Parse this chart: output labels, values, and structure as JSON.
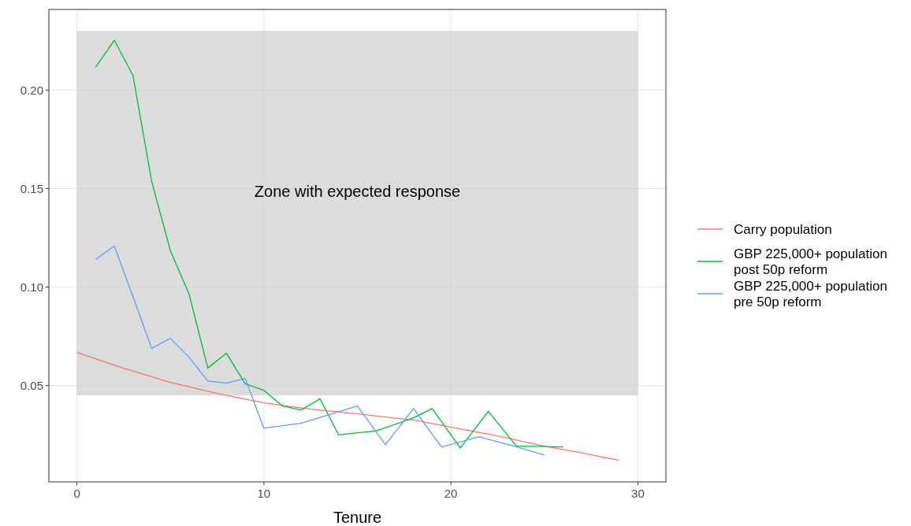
{
  "chart_data": {
    "type": "line",
    "xlabel": "Tenure",
    "xlim": [
      -1.5,
      31.5
    ],
    "ylim": [
      0.0011,
      0.2409
    ],
    "xticks": [
      0,
      10,
      20,
      30
    ],
    "yticks": [
      {
        "value": 0.05,
        "label": "0.05"
      },
      {
        "value": 0.1,
        "label": "0.10"
      },
      {
        "value": 0.15,
        "label": "0.15"
      },
      {
        "value": 0.2,
        "label": "0.20"
      }
    ],
    "grid": true,
    "legend": "right",
    "line_style": "solid",
    "marker": "none",
    "bands": [
      {
        "axis": "y",
        "from": 0.045,
        "to": 0.23,
        "color": "#dcdcdc",
        "label": "Zone with expected response"
      }
    ],
    "series": [
      {
        "name": "Carry population",
        "color": "#f8766d",
        "x": [
          0,
          2.5,
          5,
          7.5,
          10,
          12.5,
          15,
          18,
          20,
          22.5,
          25,
          27,
          29
        ],
        "values": [
          0.0668,
          0.0588,
          0.0516,
          0.046,
          0.0412,
          0.038,
          0.0356,
          0.0325,
          0.0289,
          0.0244,
          0.0192,
          0.0158,
          0.012
        ]
      },
      {
        "name": "GBP 225,000+ population\npost 50p reform",
        "color": "#00ba38",
        "x": [
          1,
          2,
          3,
          4,
          5,
          6,
          7,
          8,
          9,
          10,
          11,
          12,
          13,
          14,
          15,
          16,
          18,
          19,
          20.5,
          22,
          23.5,
          26
        ],
        "values": [
          0.2116,
          0.2253,
          0.2073,
          0.1536,
          0.1184,
          0.0964,
          0.0589,
          0.0664,
          0.0509,
          0.0476,
          0.0396,
          0.0376,
          0.0433,
          0.0249,
          0.026,
          0.0269,
          0.0336,
          0.0383,
          0.0183,
          0.0369,
          0.0193,
          0.0188
        ]
      },
      {
        "name": "GBP 225,000+ population\npre 50p reform",
        "color": "#619cff",
        "x": [
          1,
          2,
          3,
          4,
          5,
          6,
          7,
          8,
          9,
          10,
          11,
          12,
          15,
          16.5,
          18,
          19.5,
          21.5,
          23.5,
          25
        ],
        "values": [
          0.114,
          0.1209,
          0.095,
          0.0689,
          0.074,
          0.0644,
          0.0523,
          0.0512,
          0.0536,
          0.0283,
          0.0296,
          0.0309,
          0.0396,
          0.02,
          0.0383,
          0.0187,
          0.024,
          0.0189,
          0.0147
        ]
      }
    ]
  }
}
